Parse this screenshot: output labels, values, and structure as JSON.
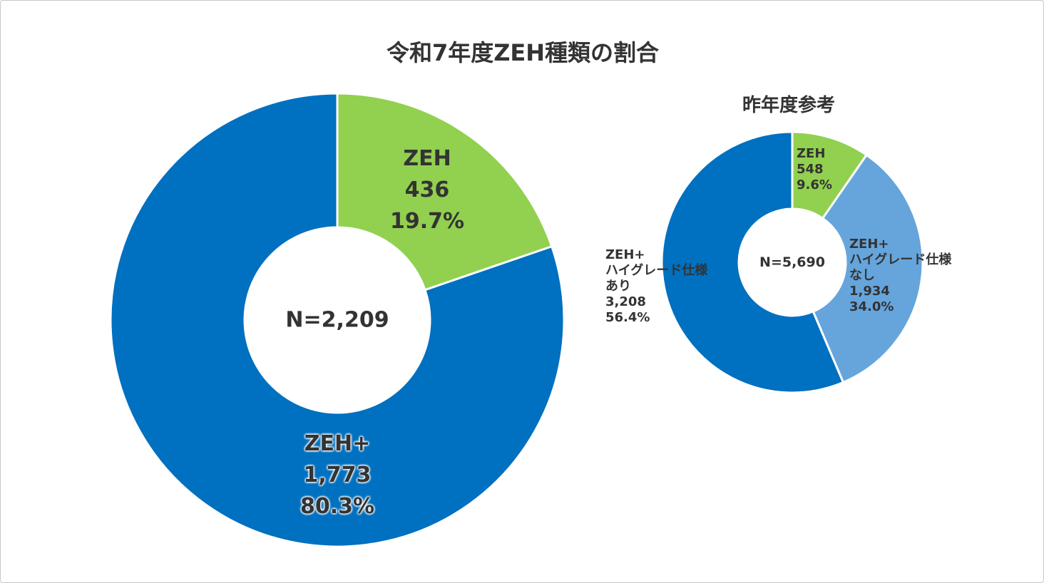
{
  "chart_data": [
    {
      "type": "pie",
      "title": "令和7年度ZEH種類の割合",
      "center_label": "N=2,209",
      "categories": [
        "ZEH",
        "ZEH+"
      ],
      "values": [
        436,
        1773
      ],
      "value_labels": [
        "436",
        "1,773"
      ],
      "percentages": [
        19.7,
        80.3
      ],
      "percentage_labels": [
        "19.7%",
        "80.3%"
      ],
      "colors": [
        "#92d050",
        "#0070c0"
      ]
    },
    {
      "type": "pie",
      "title": "昨年度参考",
      "center_label": "N=5,690",
      "categories": [
        "ZEH",
        "ZEH+\nハイグレード仕様\nなし",
        "ZEH+\nハイグレード仕様\nあり"
      ],
      "values": [
        548,
        1934,
        3208
      ],
      "value_labels": [
        "548",
        "1,934",
        "3,208"
      ],
      "percentages": [
        9.6,
        34.0,
        56.4
      ],
      "percentage_labels": [
        "9.6%",
        "34.0%",
        "56.4%"
      ],
      "colors": [
        "#92d050",
        "#65a5dc",
        "#0070c0"
      ]
    }
  ]
}
